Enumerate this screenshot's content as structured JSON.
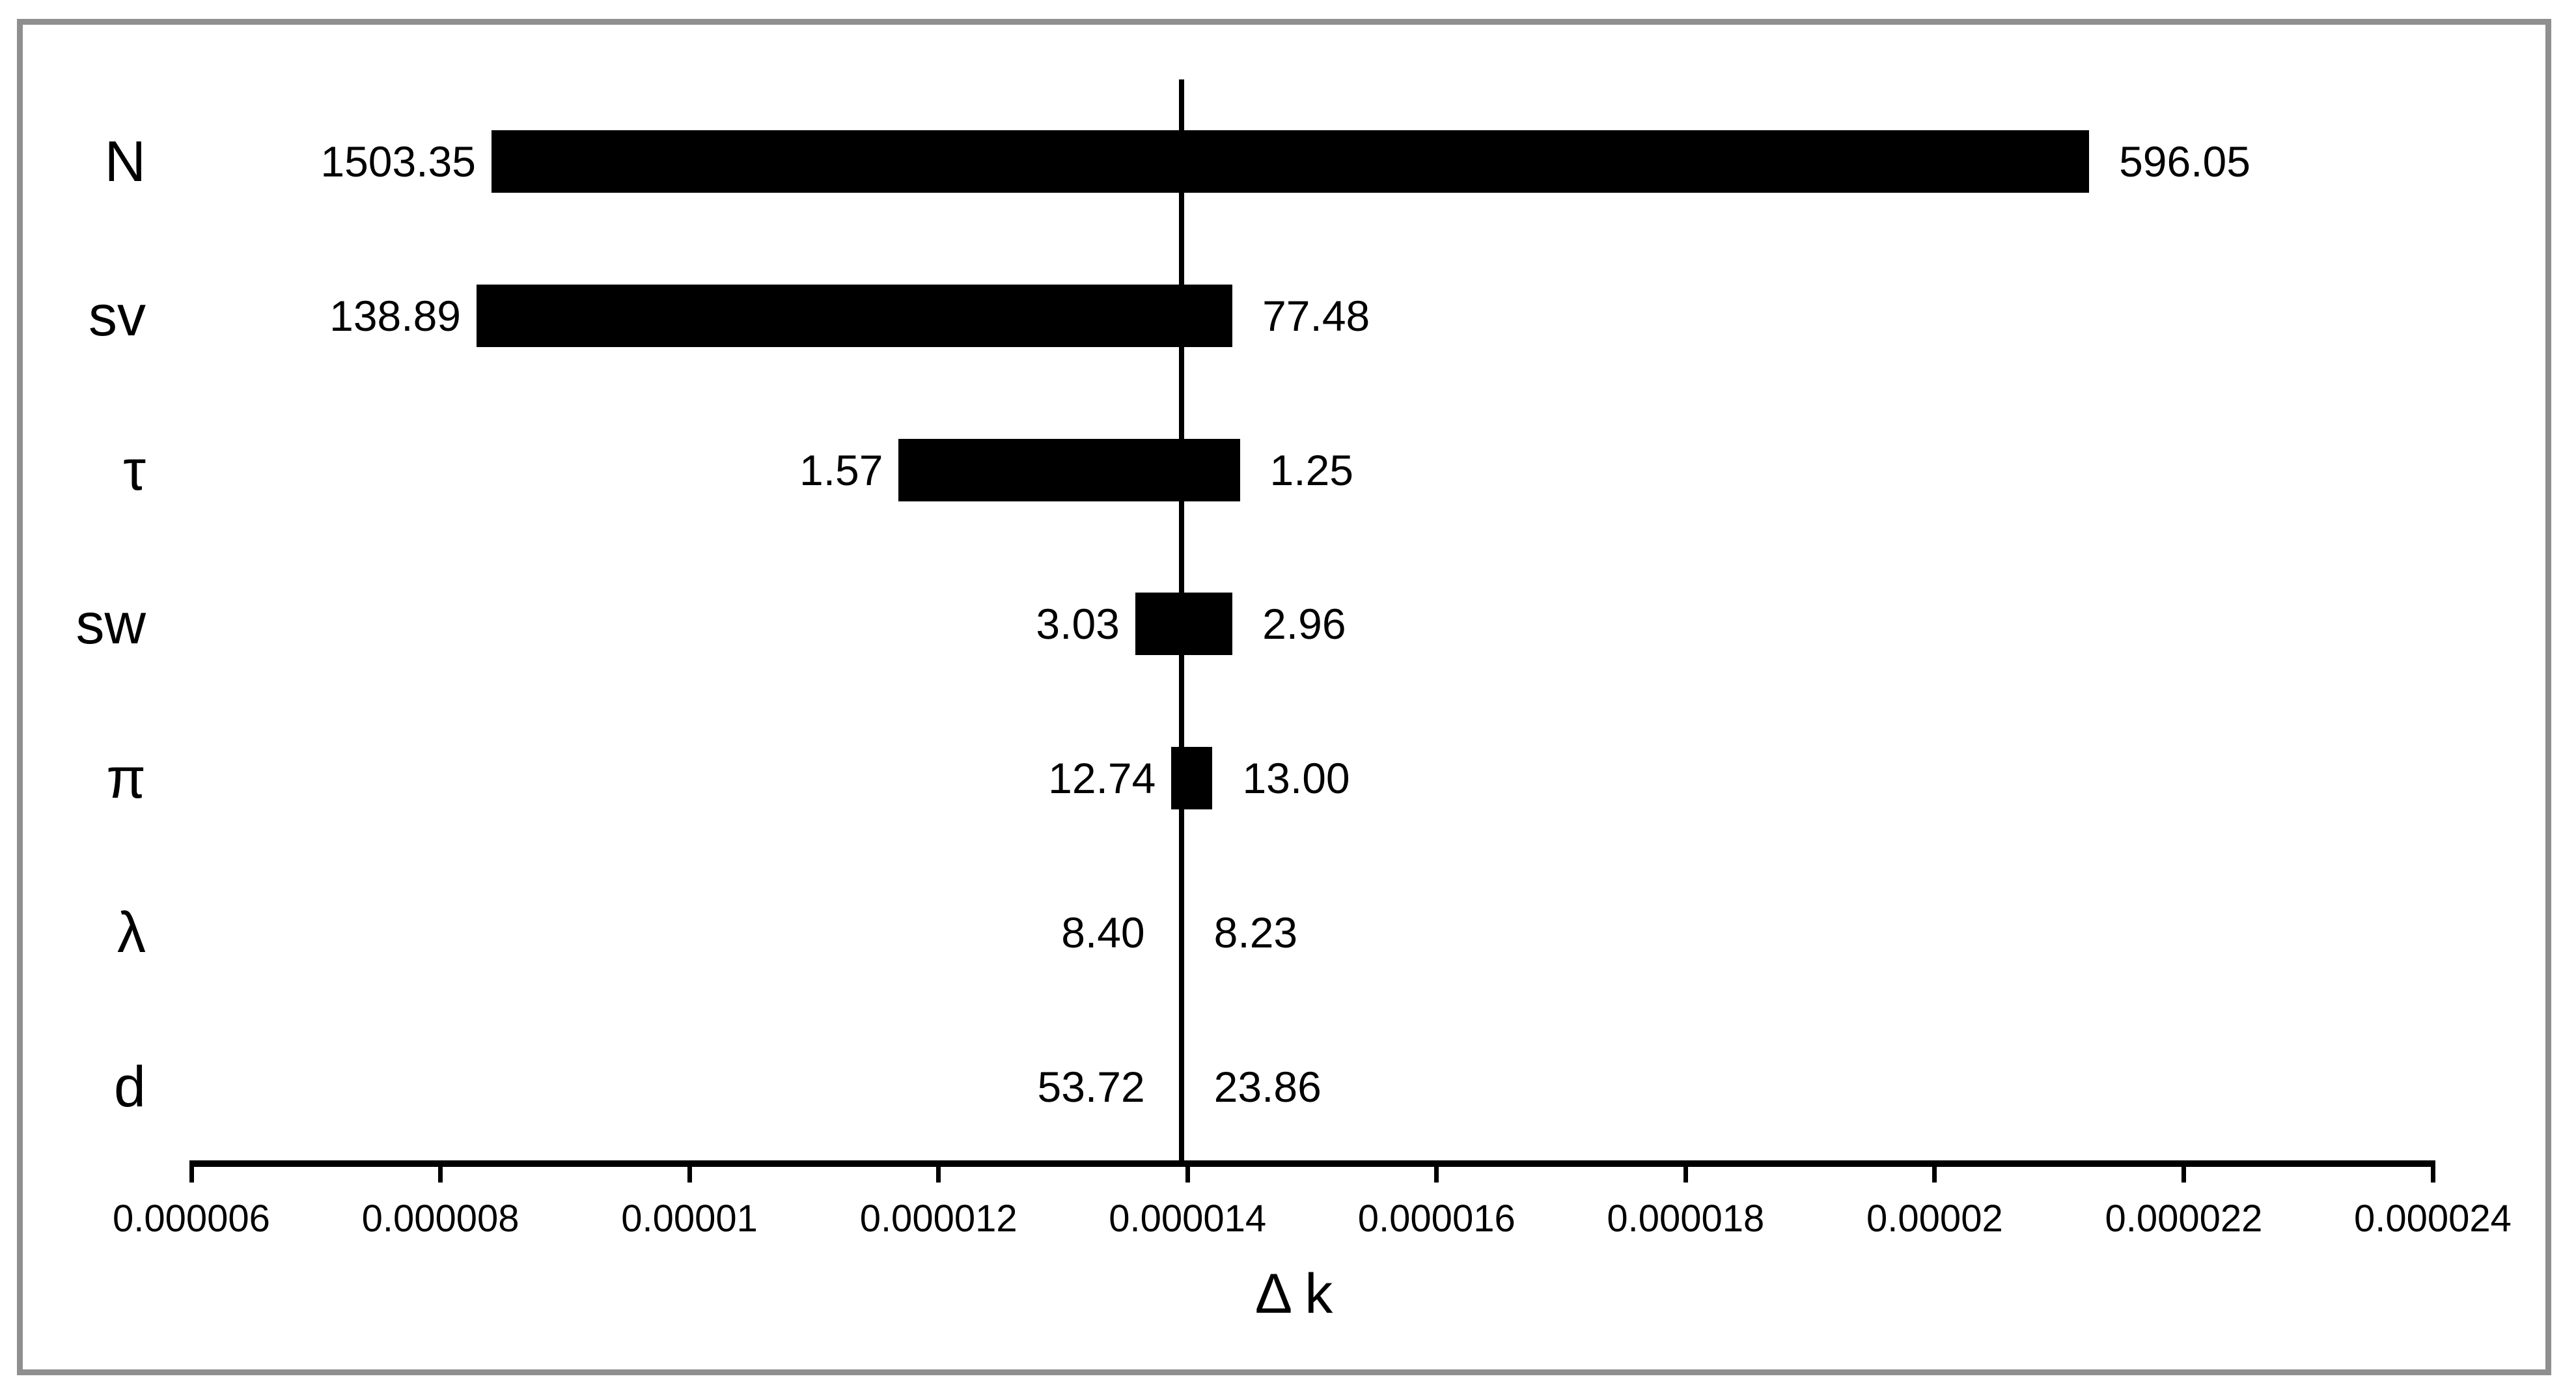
{
  "figure": {
    "background_color": "#ffffff",
    "border_color": "#8f8f8f",
    "bar_color": "#000000",
    "line_color": "#000000",
    "text_color": "#000000"
  },
  "chart_data": {
    "type": "bar",
    "variant": "tornado-sensitivity",
    "orientation": "horizontal",
    "title": "",
    "xlabel": "Δ k",
    "ylabel": "",
    "grid": false,
    "legend": false,
    "xlim": [
      6e-06,
      2.4e-05
    ],
    "x_tick_labels": [
      "0.000006",
      "0.000008",
      "0.00001",
      "0.000012",
      "0.000014",
      "0.000016",
      "0.000018",
      "0.00002",
      "0.000022",
      "0.000024"
    ],
    "x_tick_values_micro": [
      6,
      8,
      10,
      12,
      14,
      16,
      18,
      20,
      22,
      24
    ],
    "baseline_x_micro": 13.95,
    "categories": [
      "N",
      "sv",
      "τ",
      "sw",
      "π",
      "λ",
      "d"
    ],
    "rows": [
      {
        "category": "N",
        "left_label": "1503.35",
        "right_label": "596.05",
        "bar_from_micro": 8.41,
        "bar_to_micro": 21.24
      },
      {
        "category": "sv",
        "left_label": "138.89",
        "right_label": "77.48",
        "bar_from_micro": 8.29,
        "bar_to_micro": 14.36
      },
      {
        "category": "τ",
        "left_label": "1.57",
        "right_label": "1.25",
        "bar_from_micro": 11.68,
        "bar_to_micro": 14.42
      },
      {
        "category": "sw",
        "left_label": "3.03",
        "right_label": "2.96",
        "bar_from_micro": 13.58,
        "bar_to_micro": 14.36
      },
      {
        "category": "π",
        "left_label": "12.74",
        "right_label": "13.00",
        "bar_from_micro": 13.87,
        "bar_to_micro": 14.2
      },
      {
        "category": "λ",
        "left_label": "8.40",
        "right_label": "8.23",
        "bar_from_micro": null,
        "bar_to_micro": null
      },
      {
        "category": "d",
        "left_label": "53.72",
        "right_label": "23.86",
        "bar_from_micro": null,
        "bar_to_micro": null
      }
    ]
  }
}
